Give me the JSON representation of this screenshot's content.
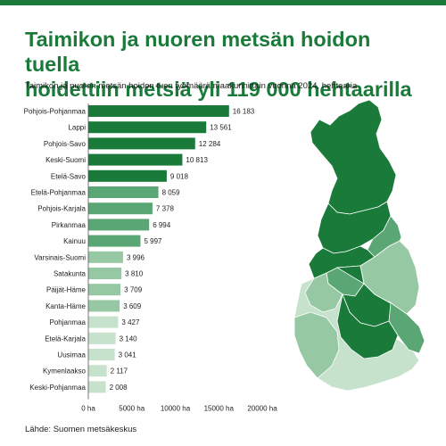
{
  "header": {
    "title_line1": "Taimikon ja nuoren metsän hoidon tuella",
    "title_line2": "hoidettiin metsiä yli 119 000 hehtaarilla",
    "subtitle": "Taimikon ja nuoren metsän hoidon tuen työmäärä maakunnittain vuonna 2024, hehtaaria"
  },
  "footer": {
    "source": "Lähde: Suomen metsäkeskus"
  },
  "colors": {
    "accent": "#1a7a3a",
    "tier_dark": "#1a7a3a",
    "tier_mid": "#5aa674",
    "tier_light": "#96c8a4",
    "tier_pale": "#c6e2cc"
  },
  "chart_data": {
    "type": "bar",
    "orientation": "horizontal",
    "categories": [
      "Pohjois-Pohjanmaa",
      "Lappi",
      "Pohjois-Savo",
      "Keski-Suomi",
      "Etelä-Savo",
      "Etelä-Pohjanmaa",
      "Pohjois-Karjala",
      "Pirkanmaa",
      "Kainuu",
      "Varsinais-Suomi",
      "Satakunta",
      "Päijät-Häme",
      "Kanta-Häme",
      "Pohjanmaa",
      "Etelä-Karjala",
      "Uusimaa",
      "Kymenlaakso",
      "Keski-Pohjanmaa"
    ],
    "values": [
      16183,
      13561,
      12284,
      10813,
      9018,
      8059,
      7378,
      6994,
      5997,
      3996,
      3810,
      3709,
      3609,
      3427,
      3140,
      3041,
      2117,
      2008
    ],
    "value_labels": [
      "16 183",
      "13 561",
      "12 284",
      "10 813",
      "9 018",
      "8 059",
      "7 378",
      "6 994",
      "5 997",
      "3 996",
      "3 810",
      "3 709",
      "3 609",
      "3 427",
      "3 140",
      "3 041",
      "2 117",
      "2 008"
    ],
    "bar_tiers": [
      "dark",
      "dark",
      "dark",
      "dark",
      "dark",
      "mid",
      "mid",
      "mid",
      "mid",
      "light",
      "light",
      "light",
      "light",
      "pale",
      "pale",
      "pale",
      "pale",
      "pale"
    ],
    "xlim": [
      0,
      20000
    ],
    "xticks": [
      0,
      5000,
      10000,
      15000,
      20000
    ],
    "xtick_labels": [
      "0 ha",
      "5000 ha",
      "10000 ha",
      "15000 ha",
      "20000 ha"
    ],
    "grid": false,
    "legend": "none",
    "map": "Finland choropleth by region, shaded with the same four tiers"
  }
}
